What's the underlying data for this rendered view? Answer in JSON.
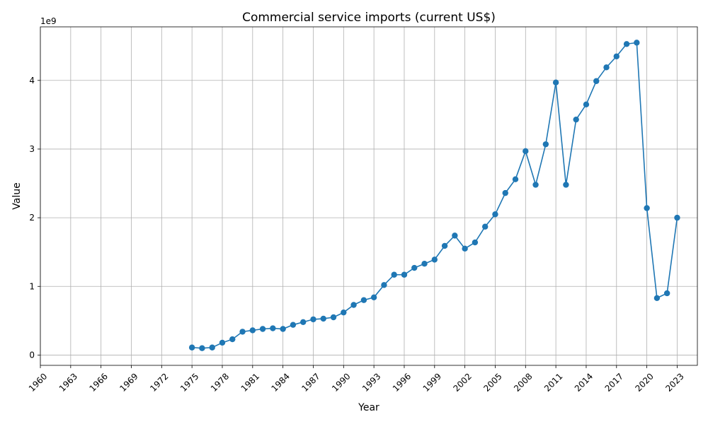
{
  "chart_data": {
    "type": "line",
    "title": "Commercial service imports (current US$)",
    "xlabel": "Year",
    "ylabel": "Value",
    "y_scale_label": "1e9",
    "xlim": [
      1960,
      2025
    ],
    "ylim": [
      -0.15,
      4.78
    ],
    "x_ticks": [
      "1960",
      "1963",
      "1966",
      "1969",
      "1972",
      "1975",
      "1978",
      "1981",
      "1984",
      "1987",
      "1990",
      "1993",
      "1996",
      "1999",
      "2002",
      "2005",
      "2008",
      "2011",
      "2014",
      "2017",
      "2020",
      "2023"
    ],
    "y_ticks": [
      "0",
      "1",
      "2",
      "3",
      "4"
    ],
    "grid": true,
    "marker": "circle",
    "color": "#1f77b4",
    "series": [
      {
        "x": [
          1975,
          1976,
          1977,
          1978,
          1979,
          1980,
          1981,
          1982,
          1983,
          1984,
          1985,
          1986,
          1987,
          1988,
          1989,
          1990,
          1991,
          1992,
          1993,
          1994,
          1995,
          1996,
          1997,
          1998,
          1999,
          2000,
          2001,
          2002,
          2003,
          2004,
          2005,
          2006,
          2007,
          2008,
          2009,
          2010,
          2011,
          2012,
          2013,
          2014,
          2015,
          2016,
          2017,
          2018,
          2019,
          2020,
          2021,
          2022,
          2023
        ],
        "values": [
          0.11,
          0.1,
          0.11,
          0.18,
          0.23,
          0.34,
          0.36,
          0.38,
          0.39,
          0.38,
          0.44,
          0.48,
          0.52,
          0.53,
          0.55,
          0.62,
          0.73,
          0.8,
          0.84,
          1.02,
          1.17,
          1.17,
          1.27,
          1.33,
          1.39,
          1.59,
          1.74,
          1.55,
          1.64,
          1.87,
          2.05,
          2.36,
          2.56,
          2.97,
          2.48,
          3.07,
          3.97,
          2.48,
          3.43,
          3.65,
          3.99,
          4.19,
          4.35,
          4.53,
          4.55,
          2.14,
          0.83,
          0.9,
          2.0
        ]
      }
    ]
  }
}
